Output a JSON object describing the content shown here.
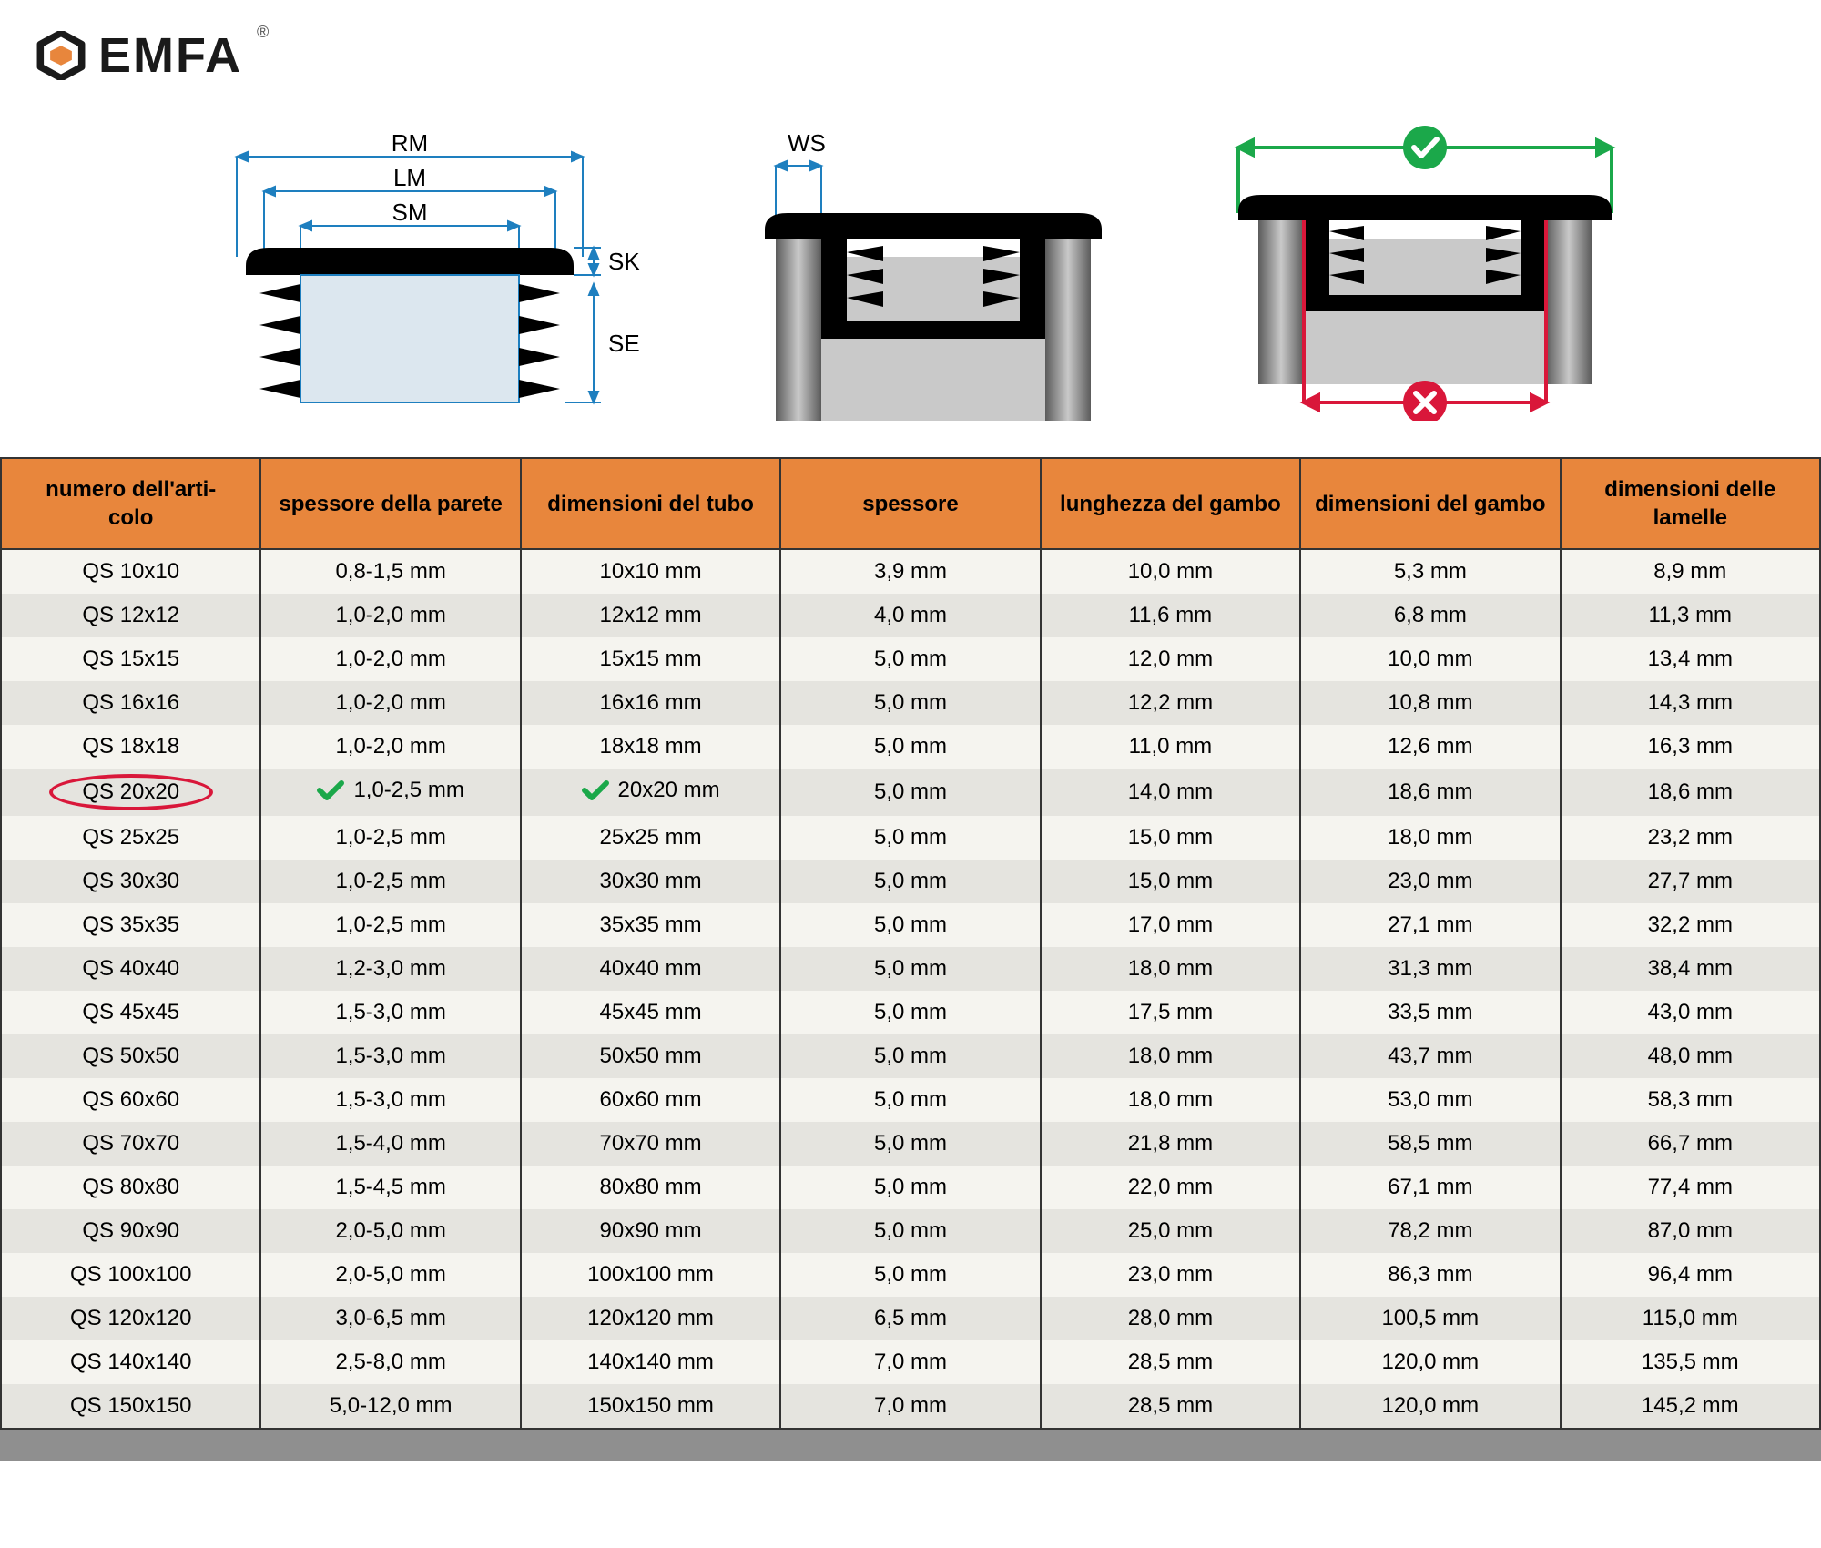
{
  "brand": {
    "name": "EMFA"
  },
  "diagram_labels": {
    "rm": "RM",
    "lm": "LM",
    "sm": "SM",
    "sk": "SK",
    "se": "SE",
    "ws": "WS"
  },
  "colors": {
    "header_bg": "#e8863c",
    "border": "#333333",
    "row_odd": "#f5f4ef",
    "row_even": "#e5e4df",
    "highlight": "#d9173a",
    "check_green": "#1ba84a",
    "cross_red": "#d9173a",
    "brand_orange": "#e8863c",
    "dim_blue": "#1e7fbf"
  },
  "table": {
    "columns": [
      "numero dell'articolo",
      "spessore della parete",
      "dimensioni del tubo",
      "spessore",
      "lunghezza del gambo",
      "dimensioni del gambo",
      "dimensioni delle lamelle"
    ],
    "highlighted_row_index": 5,
    "check_columns_on_highlight": [
      1,
      2
    ],
    "rows": [
      [
        "QS 10x10",
        "0,8-1,5 mm",
        "10x10 mm",
        "3,9 mm",
        "10,0 mm",
        "5,3 mm",
        "8,9 mm"
      ],
      [
        "QS 12x12",
        "1,0-2,0 mm",
        "12x12 mm",
        "4,0 mm",
        "11,6 mm",
        "6,8 mm",
        "11,3 mm"
      ],
      [
        "QS 15x15",
        "1,0-2,0 mm",
        "15x15 mm",
        "5,0 mm",
        "12,0 mm",
        "10,0 mm",
        "13,4 mm"
      ],
      [
        "QS 16x16",
        "1,0-2,0 mm",
        "16x16 mm",
        "5,0 mm",
        "12,2 mm",
        "10,8 mm",
        "14,3 mm"
      ],
      [
        "QS 18x18",
        "1,0-2,0 mm",
        "18x18 mm",
        "5,0 mm",
        "11,0 mm",
        "12,6 mm",
        "16,3 mm"
      ],
      [
        "QS 20x20",
        "1,0-2,5 mm",
        "20x20 mm",
        "5,0 mm",
        "14,0 mm",
        "18,6 mm",
        "18,6 mm"
      ],
      [
        "QS 25x25",
        "1,0-2,5 mm",
        "25x25 mm",
        "5,0 mm",
        "15,0 mm",
        "18,0 mm",
        "23,2 mm"
      ],
      [
        "QS 30x30",
        "1,0-2,5 mm",
        "30x30 mm",
        "5,0 mm",
        "15,0 mm",
        "23,0 mm",
        "27,7 mm"
      ],
      [
        "QS 35x35",
        "1,0-2,5 mm",
        "35x35 mm",
        "5,0 mm",
        "17,0 mm",
        "27,1 mm",
        "32,2 mm"
      ],
      [
        "QS 40x40",
        "1,2-3,0 mm",
        "40x40 mm",
        "5,0 mm",
        "18,0 mm",
        "31,3 mm",
        "38,4 mm"
      ],
      [
        "QS 45x45",
        "1,5-3,0 mm",
        "45x45 mm",
        "5,0 mm",
        "17,5 mm",
        "33,5 mm",
        "43,0 mm"
      ],
      [
        "QS 50x50",
        "1,5-3,0 mm",
        "50x50 mm",
        "5,0 mm",
        "18,0 mm",
        "43,7 mm",
        "48,0 mm"
      ],
      [
        "QS 60x60",
        "1,5-3,0 mm",
        "60x60 mm",
        "5,0 mm",
        "18,0 mm",
        "53,0 mm",
        "58,3 mm"
      ],
      [
        "QS 70x70",
        "1,5-4,0 mm",
        "70x70 mm",
        "5,0 mm",
        "21,8 mm",
        "58,5 mm",
        "66,7 mm"
      ],
      [
        "QS 80x80",
        "1,5-4,5 mm",
        "80x80 mm",
        "5,0 mm",
        "22,0 mm",
        "67,1 mm",
        "77,4 mm"
      ],
      [
        "QS 90x90",
        "2,0-5,0 mm",
        "90x90 mm",
        "5,0 mm",
        "25,0 mm",
        "78,2 mm",
        "87,0 mm"
      ],
      [
        "QS 100x100",
        "2,0-5,0 mm",
        "100x100 mm",
        "5,0 mm",
        "23,0 mm",
        "86,3 mm",
        "96,4 mm"
      ],
      [
        "QS 120x120",
        "3,0-6,5 mm",
        "120x120 mm",
        "6,5 mm",
        "28,0 mm",
        "100,5 mm",
        "115,0 mm"
      ],
      [
        "QS 140x140",
        "2,5-8,0 mm",
        "140x140 mm",
        "7,0 mm",
        "28,5 mm",
        "120,0 mm",
        "135,5 mm"
      ],
      [
        "QS 150x150",
        "5,0-12,0 mm",
        "150x150 mm",
        "7,0 mm",
        "28,5 mm",
        "120,0 mm",
        "145,2 mm"
      ]
    ]
  }
}
